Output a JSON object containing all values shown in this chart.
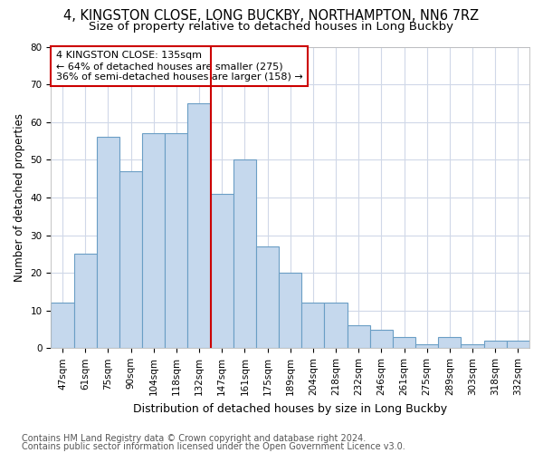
{
  "title1": "4, KINGSTON CLOSE, LONG BUCKBY, NORTHAMPTON, NN6 7RZ",
  "title2": "Size of property relative to detached houses in Long Buckby",
  "xlabel": "Distribution of detached houses by size in Long Buckby",
  "ylabel": "Number of detached properties",
  "categories": [
    "47sqm",
    "61sqm",
    "75sqm",
    "90sqm",
    "104sqm",
    "118sqm",
    "132sqm",
    "147sqm",
    "161sqm",
    "175sqm",
    "189sqm",
    "204sqm",
    "218sqm",
    "232sqm",
    "246sqm",
    "261sqm",
    "275sqm",
    "289sqm",
    "303sqm",
    "318sqm",
    "332sqm"
  ],
  "values": [
    12,
    25,
    56,
    47,
    57,
    57,
    65,
    41,
    50,
    27,
    20,
    12,
    12,
    6,
    5,
    3,
    1,
    3,
    1,
    2,
    2
  ],
  "bar_color": "#c5d8ed",
  "bar_edge_color": "#6a9ec5",
  "vline_index": 6.5,
  "vline_color": "#cc0000",
  "annotation_line1": "4 KINGSTON CLOSE: 135sqm",
  "annotation_line2": "← 64% of detached houses are smaller (275)",
  "annotation_line3": "36% of semi-detached houses are larger (158) →",
  "annotation_box_facecolor": "#ffffff",
  "annotation_box_edgecolor": "#cc0000",
  "ylim": [
    0,
    80
  ],
  "yticks": [
    0,
    10,
    20,
    30,
    40,
    50,
    60,
    70,
    80
  ],
  "footer1": "Contains HM Land Registry data © Crown copyright and database right 2024.",
  "footer2": "Contains public sector information licensed under the Open Government Licence v3.0.",
  "fig_facecolor": "#ffffff",
  "axes_facecolor": "#ffffff",
  "grid_color": "#d0d8e8",
  "title1_fontsize": 10.5,
  "title2_fontsize": 9.5,
  "tick_fontsize": 7.5,
  "ylabel_fontsize": 8.5,
  "xlabel_fontsize": 9,
  "annotation_fontsize": 8,
  "footer_fontsize": 7
}
